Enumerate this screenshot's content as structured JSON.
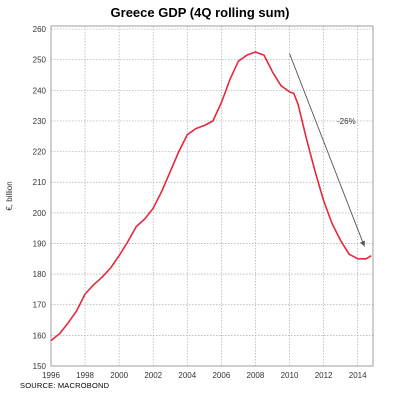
{
  "chart_data": {
    "type": "line",
    "title": "Greece GDP (4Q rolling sum)",
    "ylabel": "€, billion",
    "xlabel": "",
    "source": "SOURCE: MACROBOND",
    "xlim": [
      1996,
      2014.9
    ],
    "ylim": [
      150,
      261
    ],
    "x_ticks": [
      1996,
      1998,
      2000,
      2002,
      2004,
      2006,
      2008,
      2010,
      2012,
      2014
    ],
    "y_ticks": [
      150,
      160,
      170,
      180,
      190,
      200,
      210,
      220,
      230,
      240,
      250,
      260
    ],
    "grid": true,
    "series": [
      {
        "color": "#e8283c",
        "x": [
          1996.0,
          1996.5,
          1997.0,
          1997.5,
          1998.0,
          1998.5,
          1999.0,
          1999.5,
          2000.0,
          2000.5,
          2001.0,
          2001.5,
          2002.0,
          2002.5,
          2003.0,
          2003.5,
          2004.0,
          2004.5,
          2005.0,
          2005.5,
          2006.0,
          2006.5,
          2007.0,
          2007.5,
          2008.0,
          2008.25,
          2008.5,
          2009.0,
          2009.5,
          2010.0,
          2010.25,
          2010.5,
          2011.0,
          2011.5,
          2012.0,
          2012.5,
          2013.0,
          2013.5,
          2014.0,
          2014.5,
          2014.8
        ],
        "values": [
          158.3,
          160.5,
          164.0,
          168.0,
          173.5,
          176.5,
          179.0,
          182.0,
          186.0,
          190.5,
          195.5,
          198.0,
          201.5,
          207.0,
          213.5,
          220.0,
          225.5,
          227.5,
          228.5,
          230.0,
          236.0,
          243.5,
          249.5,
          251.5,
          252.5,
          252.0,
          251.5,
          246.0,
          241.5,
          239.5,
          239.0,
          235.5,
          224.0,
          213.5,
          204.0,
          196.5,
          191.0,
          186.5,
          185.0,
          185.0,
          186.0
        ]
      }
    ],
    "annotations": [
      {
        "text": "-26%",
        "type": "arrow",
        "from": [
          2010.0,
          252
        ],
        "to": [
          2014.4,
          189
        ]
      }
    ]
  }
}
